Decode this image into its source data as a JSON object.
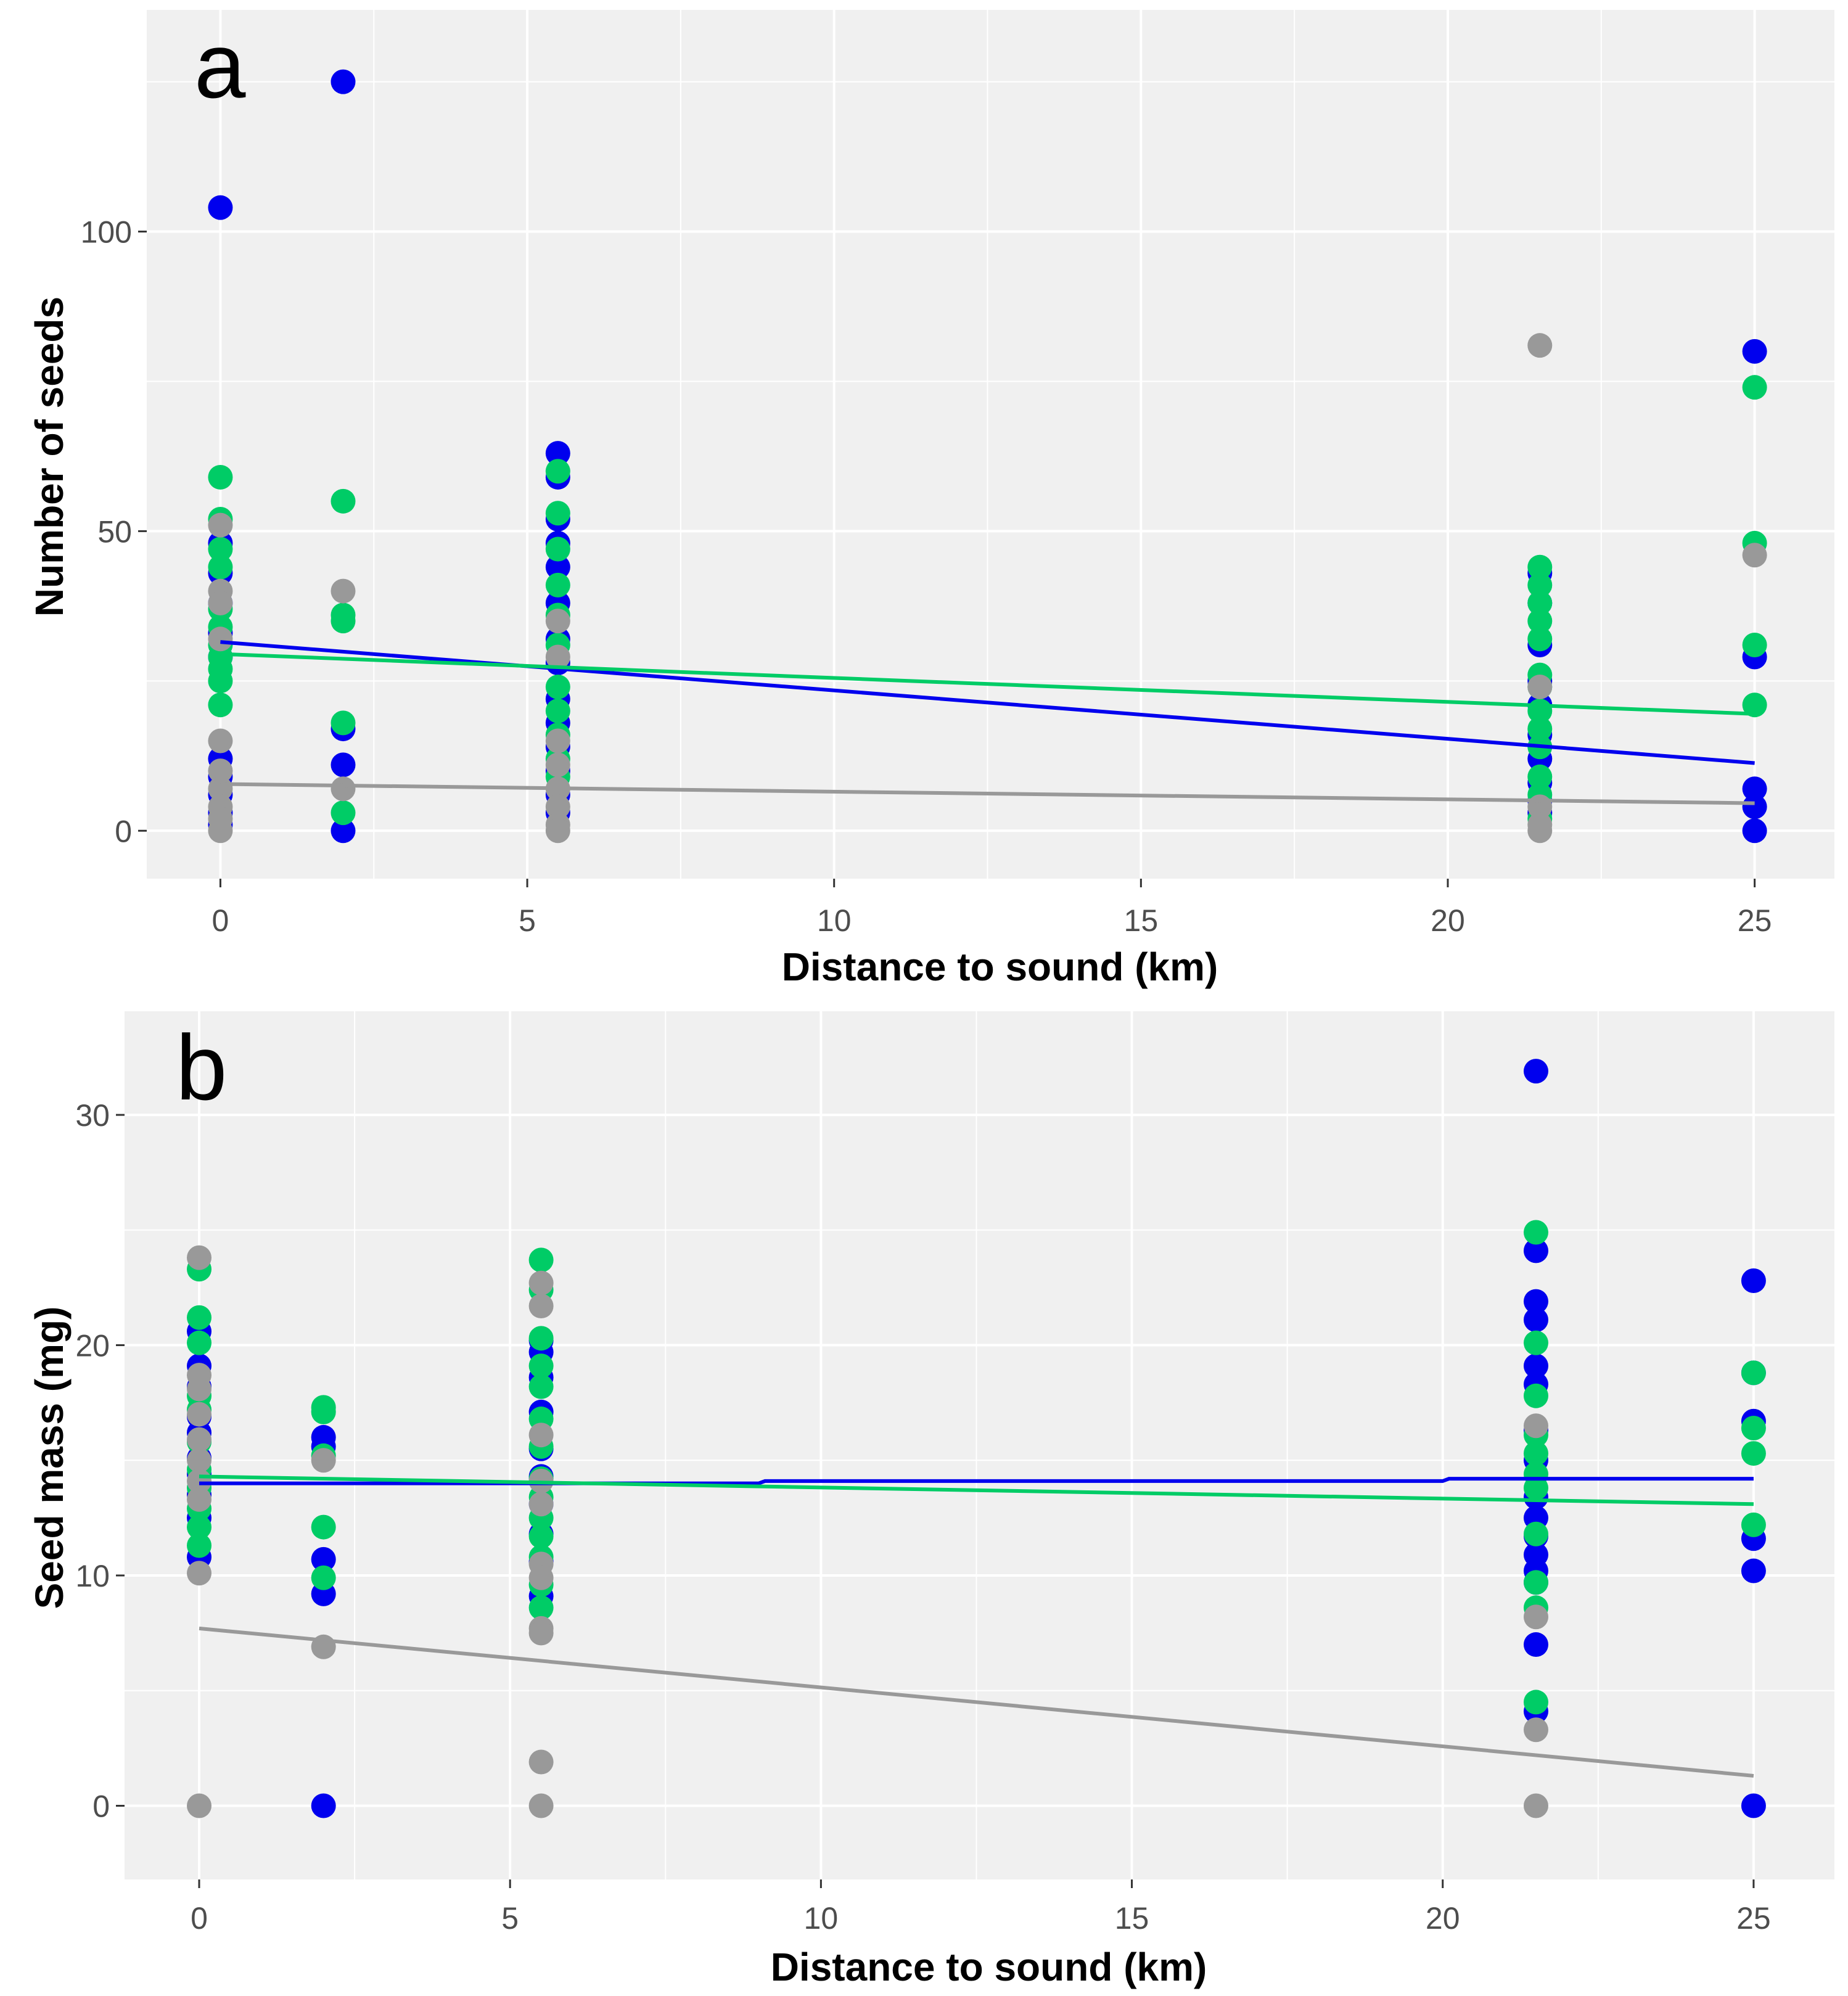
{
  "chart_data": [
    {
      "type": "scatter",
      "panel_label": "a",
      "xlabel": "Distance to sound (km)",
      "ylabel": "Number of seeds",
      "xlim": [
        -1.2,
        26.3
      ],
      "ylim": [
        -8,
        137
      ],
      "xticks": [
        0,
        5,
        10,
        15,
        20,
        25
      ],
      "yticks": [
        0,
        50,
        100
      ],
      "grid": true,
      "legend": "none",
      "series": [
        {
          "name": "blue",
          "color": "#0000ee",
          "points": [
            [
              0,
              104
            ],
            [
              0,
              48
            ],
            [
              0,
              43
            ],
            [
              0,
              38
            ],
            [
              0,
              33
            ],
            [
              0,
              29
            ],
            [
              0,
              12
            ],
            [
              0,
              9
            ],
            [
              0,
              6
            ],
            [
              0,
              3
            ],
            [
              0,
              1
            ],
            [
              2,
              125
            ],
            [
              2,
              17
            ],
            [
              2,
              11
            ],
            [
              2,
              0
            ],
            [
              5.5,
              63
            ],
            [
              5.5,
              59
            ],
            [
              5.5,
              52
            ],
            [
              5.5,
              48
            ],
            [
              5.5,
              44
            ],
            [
              5.5,
              38
            ],
            [
              5.5,
              32
            ],
            [
              5.5,
              28
            ],
            [
              5.5,
              22
            ],
            [
              5.5,
              18
            ],
            [
              5.5,
              14
            ],
            [
              5.5,
              10
            ],
            [
              5.5,
              6
            ],
            [
              5.5,
              3
            ],
            [
              21.5,
              43
            ],
            [
              21.5,
              38
            ],
            [
              21.5,
              31
            ],
            [
              21.5,
              25
            ],
            [
              21.5,
              21
            ],
            [
              21.5,
              16
            ],
            [
              21.5,
              12
            ],
            [
              21.5,
              8
            ],
            [
              21.5,
              5
            ],
            [
              21.5,
              3
            ],
            [
              25,
              80
            ],
            [
              25,
              29
            ],
            [
              25,
              7
            ],
            [
              25,
              4
            ],
            [
              25,
              0
            ]
          ],
          "trend": [
            [
              0,
              31.5
            ],
            [
              25,
              11.3
            ]
          ]
        },
        {
          "name": "green",
          "color": "#00cc66",
          "points": [
            [
              0,
              59
            ],
            [
              0,
              52
            ],
            [
              0,
              47
            ],
            [
              0,
              44
            ],
            [
              0,
              37
            ],
            [
              0,
              34
            ],
            [
              0,
              31
            ],
            [
              0,
              29
            ],
            [
              0,
              27
            ],
            [
              0,
              25
            ],
            [
              0,
              21
            ],
            [
              2,
              55
            ],
            [
              2,
              36
            ],
            [
              2,
              35
            ],
            [
              2,
              18
            ],
            [
              2,
              3
            ],
            [
              5.5,
              60
            ],
            [
              5.5,
              53
            ],
            [
              5.5,
              47
            ],
            [
              5.5,
              41
            ],
            [
              5.5,
              36
            ],
            [
              5.5,
              31
            ],
            [
              5.5,
              24
            ],
            [
              5.5,
              20
            ],
            [
              5.5,
              16
            ],
            [
              5.5,
              12
            ],
            [
              5.5,
              9
            ],
            [
              21.5,
              44
            ],
            [
              21.5,
              41
            ],
            [
              21.5,
              38
            ],
            [
              21.5,
              35
            ],
            [
              21.5,
              32
            ],
            [
              21.5,
              26
            ],
            [
              21.5,
              24
            ],
            [
              21.5,
              20
            ],
            [
              21.5,
              17
            ],
            [
              21.5,
              14
            ],
            [
              21.5,
              9
            ],
            [
              21.5,
              6
            ],
            [
              21.5,
              2
            ],
            [
              25,
              74
            ],
            [
              25,
              48
            ],
            [
              25,
              31
            ],
            [
              25,
              21
            ]
          ],
          "trend": [
            [
              0,
              29.5
            ],
            [
              25,
              19.5
            ]
          ]
        },
        {
          "name": "gray",
          "color": "#999999",
          "points": [
            [
              0,
              51
            ],
            [
              0,
              40
            ],
            [
              0,
              38
            ],
            [
              0,
              32
            ],
            [
              0,
              15
            ],
            [
              0,
              10
            ],
            [
              0,
              7
            ],
            [
              0,
              4
            ],
            [
              0,
              2
            ],
            [
              0,
              0
            ],
            [
              2,
              40
            ],
            [
              2,
              7
            ],
            [
              5.5,
              35
            ],
            [
              5.5,
              29
            ],
            [
              5.5,
              15
            ],
            [
              5.5,
              11
            ],
            [
              5.5,
              7
            ],
            [
              5.5,
              4
            ],
            [
              5.5,
              1
            ],
            [
              5.5,
              0
            ],
            [
              21.5,
              81
            ],
            [
              21.5,
              24
            ],
            [
              21.5,
              4
            ],
            [
              21.5,
              1
            ],
            [
              21.5,
              0
            ],
            [
              25,
              46
            ]
          ],
          "trend": [
            [
              0,
              7.8
            ],
            [
              25,
              4.6
            ]
          ]
        }
      ]
    },
    {
      "type": "scatter",
      "panel_label": "b",
      "xlabel": "Distance to sound (km)",
      "ylabel": "Seed mass (mg)",
      "xlim": [
        -1.2,
        26.3
      ],
      "ylim": [
        -3.2,
        34.5
      ],
      "xticks": [
        0,
        5,
        10,
        15,
        20,
        25
      ],
      "yticks": [
        0,
        10,
        20,
        30
      ],
      "grid": true,
      "legend": "none",
      "series": [
        {
          "name": "blue",
          "color": "#0000ee",
          "points": [
            [
              0,
              20.6
            ],
            [
              0,
              19.1
            ],
            [
              0,
              18.2
            ],
            [
              0,
              16.9
            ],
            [
              0,
              16.2
            ],
            [
              0,
              15.1
            ],
            [
              0,
              14.4
            ],
            [
              0,
              13.5
            ],
            [
              0,
              12.5
            ],
            [
              0,
              10.8
            ],
            [
              2,
              16
            ],
            [
              2,
              15.6
            ],
            [
              2,
              10.7
            ],
            [
              2,
              9.2
            ],
            [
              2,
              0
            ],
            [
              5.5,
              20.2
            ],
            [
              5.5,
              19.7
            ],
            [
              5.5,
              18.6
            ],
            [
              5.5,
              17.1
            ],
            [
              5.5,
              15.5
            ],
            [
              5.5,
              14.3
            ],
            [
              5.5,
              13.1
            ],
            [
              5.5,
              11.8
            ],
            [
              5.5,
              10.6
            ],
            [
              5.5,
              9.1
            ],
            [
              21.5,
              31.9
            ],
            [
              21.5,
              24.1
            ],
            [
              21.5,
              21.9
            ],
            [
              21.5,
              21.1
            ],
            [
              21.5,
              19.1
            ],
            [
              21.5,
              18.3
            ],
            [
              21.5,
              16.3
            ],
            [
              21.5,
              15
            ],
            [
              21.5,
              13.4
            ],
            [
              21.5,
              12.5
            ],
            [
              21.5,
              11.7
            ],
            [
              21.5,
              10.9
            ],
            [
              21.5,
              10.2
            ],
            [
              21.5,
              9.7
            ],
            [
              21.5,
              7
            ],
            [
              21.5,
              4.1
            ],
            [
              25,
              22.8
            ],
            [
              25,
              18.8
            ],
            [
              25,
              16.7
            ],
            [
              25,
              11.6
            ],
            [
              25,
              10.2
            ],
            [
              25,
              0
            ]
          ],
          "trend": [
            [
              0,
              14
            ],
            [
              9,
              14
            ],
            [
              9.1,
              14.1
            ],
            [
              20,
              14.1
            ],
            [
              20.1,
              14.2
            ],
            [
              25,
              14.2
            ]
          ]
        },
        {
          "name": "green",
          "color": "#00cc66",
          "points": [
            [
              0,
              23.3
            ],
            [
              0,
              21.2
            ],
            [
              0,
              20.1
            ],
            [
              0,
              17.8
            ],
            [
              0,
              17.2
            ],
            [
              0,
              15.8
            ],
            [
              0,
              14.6
            ],
            [
              0,
              13.8
            ],
            [
              0,
              12.9
            ],
            [
              0,
              12.1
            ],
            [
              0,
              11.3
            ],
            [
              2,
              17.3
            ],
            [
              2,
              17.1
            ],
            [
              2,
              15.2
            ],
            [
              2,
              12.1
            ],
            [
              2,
              9.9
            ],
            [
              5.5,
              23.7
            ],
            [
              5.5,
              22.4
            ],
            [
              5.5,
              20.3
            ],
            [
              5.5,
              19.1
            ],
            [
              5.5,
              18.2
            ],
            [
              5.5,
              16.8
            ],
            [
              5.5,
              15.6
            ],
            [
              5.5,
              14.2
            ],
            [
              5.5,
              13.4
            ],
            [
              5.5,
              12.5
            ],
            [
              5.5,
              11.7
            ],
            [
              5.5,
              10.8
            ],
            [
              5.5,
              9.6
            ],
            [
              5.5,
              8.6
            ],
            [
              21.5,
              24.9
            ],
            [
              21.5,
              20.1
            ],
            [
              21.5,
              17.8
            ],
            [
              21.5,
              16.1
            ],
            [
              21.5,
              15.3
            ],
            [
              21.5,
              14.4
            ],
            [
              21.5,
              13.8
            ],
            [
              21.5,
              11.8
            ],
            [
              21.5,
              9.7
            ],
            [
              21.5,
              8.6
            ],
            [
              21.5,
              4.5
            ],
            [
              25,
              18.8
            ],
            [
              25,
              16.4
            ],
            [
              25,
              15.3
            ],
            [
              25,
              12.2
            ]
          ],
          "trend": [
            [
              0,
              14.3
            ],
            [
              25,
              13.1
            ]
          ]
        },
        {
          "name": "gray",
          "color": "#999999",
          "points": [
            [
              0,
              23.8
            ],
            [
              0,
              18.7
            ],
            [
              0,
              18.1
            ],
            [
              0,
              17
            ],
            [
              0,
              15.9
            ],
            [
              0,
              15
            ],
            [
              0,
              14.1
            ],
            [
              0,
              13.3
            ],
            [
              0,
              10.1
            ],
            [
              0,
              0
            ],
            [
              2,
              15
            ],
            [
              2,
              6.9
            ],
            [
              5.5,
              22.7
            ],
            [
              5.5,
              21.7
            ],
            [
              5.5,
              16.1
            ],
            [
              5.5,
              14.1
            ],
            [
              5.5,
              13.1
            ],
            [
              5.5,
              10.5
            ],
            [
              5.5,
              9.9
            ],
            [
              5.5,
              7.7
            ],
            [
              5.5,
              7.5
            ],
            [
              5.5,
              1.9
            ],
            [
              5.5,
              0
            ],
            [
              21.5,
              16.5
            ],
            [
              21.5,
              8.2
            ],
            [
              21.5,
              3.3
            ],
            [
              21.5,
              0
            ]
          ],
          "trend": [
            [
              0,
              7.7
            ],
            [
              25,
              1.3
            ]
          ]
        }
      ]
    }
  ]
}
